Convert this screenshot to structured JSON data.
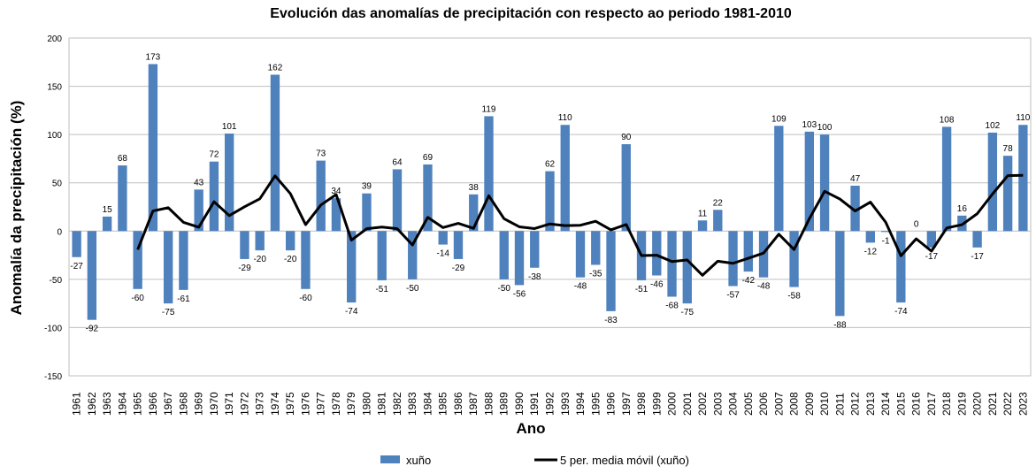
{
  "chart_data": {
    "type": "bar",
    "title": "Evolución das anomalías de precipitación con respecto ao periodo 1981-2010",
    "x_label": "Ano",
    "y_label": "Anomalía da precipitación (%)",
    "categories": [
      "1961",
      "1962",
      "1963",
      "1964",
      "1965",
      "1966",
      "1967",
      "1968",
      "1969",
      "1970",
      "1971",
      "1972",
      "1973",
      "1974",
      "1975",
      "1976",
      "1977",
      "1978",
      "1979",
      "1980",
      "1981",
      "1982",
      "1983",
      "1984",
      "1985",
      "1986",
      "1987",
      "1988",
      "1989",
      "1990",
      "1991",
      "1992",
      "1993",
      "1994",
      "1995",
      "1996",
      "1997",
      "1998",
      "1999",
      "2000",
      "2001",
      "2002",
      "2003",
      "2004",
      "2005",
      "2006",
      "2007",
      "2008",
      "2009",
      "2010",
      "2011",
      "2012",
      "2013",
      "2014",
      "2015",
      "2016",
      "2017",
      "2018",
      "2019",
      "2020",
      "2021",
      "2022",
      "2023"
    ],
    "series": [
      {
        "name": "xuño",
        "type": "bar",
        "color": "#4f81bd",
        "values": [
          -27,
          -92,
          15,
          68,
          -60,
          173,
          -75,
          -61,
          43,
          72,
          101,
          -29,
          -20,
          162,
          -20,
          -60,
          73,
          34,
          -74,
          39,
          -51,
          64,
          -50,
          69,
          -14,
          -29,
          38,
          119,
          -50,
          -56,
          -38,
          62,
          110,
          -48,
          -35,
          -83,
          90,
          -51,
          -46,
          -68,
          -75,
          11,
          22,
          -57,
          -42,
          -48,
          109,
          -58,
          103,
          100,
          -88,
          47,
          -12,
          -1,
          -74,
          0,
          -17,
          108,
          16,
          -17,
          102,
          78,
          110
        ]
      },
      {
        "name": "5 per. media móvil (xuño)",
        "type": "line",
        "color": "#000000",
        "values": [
          null,
          null,
          null,
          null,
          -19.2,
          20.8,
          24.2,
          9,
          4,
          30.4,
          16,
          25.2,
          33.4,
          57.2,
          38.8,
          6.6,
          27,
          37.8,
          -9.4,
          2.4,
          4.2,
          2.4,
          -14.4,
          14.2,
          3.6,
          8,
          2.8,
          36.6,
          12.8,
          4.4,
          2.6,
          7.4,
          5.6,
          6,
          10.2,
          1.2,
          6.8,
          -25.4,
          -25,
          -31.6,
          -30,
          -45.8,
          -31.2,
          -33.4,
          -28.2,
          -22.8,
          -3.2,
          -19.2,
          12.8,
          41.2,
          33.2,
          20.8,
          30,
          9.2,
          -25.6,
          -8,
          -20.8,
          3.2,
          6.6,
          18,
          38.4,
          57.4,
          57.8
        ]
      }
    ],
    "ylim": [
      -150,
      200
    ],
    "yticks": [
      -150,
      -100,
      -50,
      0,
      50,
      100,
      150,
      200
    ],
    "grid": true,
    "legend": "bottom"
  }
}
